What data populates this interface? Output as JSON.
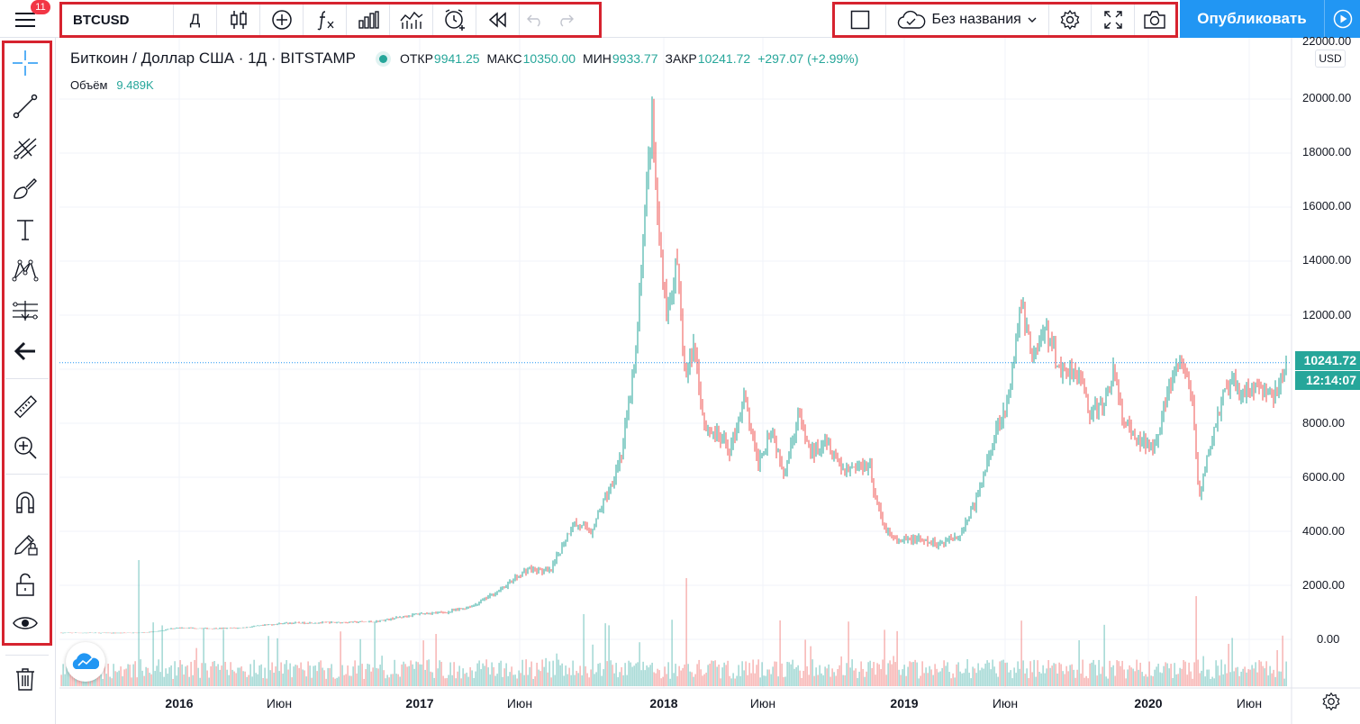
{
  "header": {
    "menu_badge": "11",
    "symbol": "BTCUSD",
    "interval": "Д",
    "layout_name": "Без названия",
    "publish_label": "Опубликовать"
  },
  "legend": {
    "title": "Биткоин / Доллар США · 1Д · BITSTAMP",
    "open_label": "ОТКР",
    "open": "9941.25",
    "high_label": "МАКС",
    "high": "10350.00",
    "low_label": "МИН",
    "low": "9933.77",
    "close_label": "ЗАКР",
    "close": "10241.72",
    "change": "+297.07 (+2.99%)",
    "volume_label": "Объём",
    "volume": "9.489K"
  },
  "price_axis": {
    "currency": "USD",
    "ticks": [
      "22000.00",
      "20000.00",
      "18000.00",
      "16000.00",
      "14000.00",
      "12000.00",
      "8000.00",
      "6000.00",
      "4000.00",
      "2000.00",
      "0.00"
    ],
    "last_price": "10241.72",
    "countdown": "12:14:07"
  },
  "time_axis": {
    "ticks": [
      {
        "label": "2016",
        "bold": true
      },
      {
        "label": "Июн",
        "bold": false
      },
      {
        "label": "2017",
        "bold": true
      },
      {
        "label": "Июн",
        "bold": false
      },
      {
        "label": "2018",
        "bold": true
      },
      {
        "label": "Июн",
        "bold": false
      },
      {
        "label": "2019",
        "bold": true
      },
      {
        "label": "Июн",
        "bold": false
      },
      {
        "label": "2020",
        "bold": true
      },
      {
        "label": "Июн",
        "bold": false
      }
    ]
  },
  "colors": {
    "up": "#26a69a",
    "down": "#ef5350",
    "accent": "#2196f3",
    "highlight": "#d6232f"
  },
  "icons": {
    "left_toolbar": [
      "crosshair-icon",
      "trend-line-icon",
      "pitchfork-icon",
      "brush-icon",
      "text-icon",
      "pattern-icon",
      "prediction-icon",
      "back-arrow-icon",
      "ruler-icon",
      "zoom-in-icon",
      "magnet-icon",
      "lock-drawing-icon",
      "unlock-icon",
      "eye-icon",
      "trash-icon"
    ]
  },
  "chart_data": {
    "type": "candlestick",
    "title": "Биткоин / Доллар США · 1Д · BITSTAMP",
    "x_unit": "date",
    "ylim": [
      0,
      22000
    ],
    "dates": [
      "2015-09",
      "2015-12",
      "2016-03",
      "2016-06",
      "2016-09",
      "2016-12",
      "2017-03",
      "2017-06",
      "2017-09",
      "2017-11",
      "2017-12",
      "2018-01",
      "2018-02",
      "2018-03",
      "2018-06",
      "2018-09",
      "2018-11",
      "2018-12",
      "2019-03",
      "2019-05",
      "2019-06",
      "2019-09",
      "2019-12",
      "2020-02",
      "2020-03",
      "2020-05",
      "2020-06",
      "2020-07"
    ],
    "close": [
      240,
      430,
      420,
      700,
      600,
      950,
      1100,
      2500,
      4200,
      9500,
      16000,
      11000,
      8000,
      9000,
      6500,
      6500,
      4000,
      3400,
      3900,
      8000,
      12000,
      8300,
      7200,
      10000,
      5000,
      9500,
      9100,
      10240
    ],
    "last_close": 10241.72
  }
}
